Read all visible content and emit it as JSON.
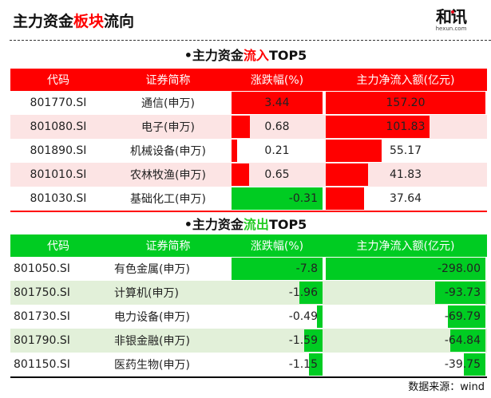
{
  "header": {
    "title_pre": "主力资金",
    "title_highlight": "板块",
    "title_post": "流向",
    "logo_mark": "和讯",
    "logo_domain": "hexun.com"
  },
  "inflow": {
    "title_pre": "•主力资金",
    "title_highlight": "流入",
    "title_post": "TOP5",
    "color": "#ff0000",
    "columns": [
      "代码",
      "证券简称",
      "涨跌幅(%)",
      "主力净流入额(亿元)"
    ],
    "rows": [
      {
        "code": "801770.SI",
        "name": "通信(申万)",
        "change": "3.44",
        "flow": "157.20"
      },
      {
        "code": "801080.SI",
        "name": "电子(申万)",
        "change": "0.68",
        "flow": "101.83"
      },
      {
        "code": "801890.SI",
        "name": "机械设备(申万)",
        "change": "0.21",
        "flow": "55.17"
      },
      {
        "code": "801010.SI",
        "name": "农林牧渔(申万)",
        "change": "0.65",
        "flow": "41.83"
      },
      {
        "code": "801030.SI",
        "name": "基础化工(申万)",
        "change": "-0.31",
        "flow": "37.64"
      }
    ]
  },
  "outflow": {
    "title_pre": "•主力资金",
    "title_highlight": "流出",
    "title_post": "TOP5",
    "color": "#00cc22",
    "columns": [
      "代码",
      "证券简称",
      "涨跌幅(%)",
      "主力净流入额(亿元)"
    ],
    "rows": [
      {
        "code": "801050.SI",
        "name": "有色金属(申万)",
        "change": "-7.8",
        "flow": "-298.00"
      },
      {
        "code": "801750.SI",
        "name": "计算机(申万)",
        "change": "-1.96",
        "flow": "-93.73"
      },
      {
        "code": "801730.SI",
        "name": "电力设备(申万)",
        "change": "-0.49",
        "flow": "-69.79"
      },
      {
        "code": "801790.SI",
        "name": "非银金融(申万)",
        "change": "-1.59",
        "flow": "-64.84"
      },
      {
        "code": "801150.SI",
        "name": "医药生物(申万)",
        "change": "-1.15",
        "flow": "-39.75"
      }
    ]
  },
  "footer": {
    "source": "数据来源：wind"
  },
  "chart_data": [
    {
      "type": "table",
      "title": "主力资金流入TOP5",
      "columns": [
        "代码",
        "证券简称",
        "涨跌幅(%)",
        "主力净流入额(亿元)"
      ],
      "categories": [
        "通信(申万)",
        "电子(申万)",
        "机械设备(申万)",
        "农林牧渔(申万)",
        "基础化工(申万)"
      ],
      "series": [
        {
          "name": "涨跌幅(%)",
          "values": [
            3.44,
            0.68,
            0.21,
            0.65,
            -0.31
          ]
        },
        {
          "name": "主力净流入额(亿元)",
          "values": [
            157.2,
            101.83,
            55.17,
            41.83,
            37.64
          ]
        }
      ]
    },
    {
      "type": "table",
      "title": "主力资金流出TOP5",
      "columns": [
        "代码",
        "证券简称",
        "涨跌幅(%)",
        "主力净流入额(亿元)"
      ],
      "categories": [
        "有色金属(申万)",
        "计算机(申万)",
        "电力设备(申万)",
        "非银金融(申万)",
        "医药生物(申万)"
      ],
      "series": [
        {
          "name": "涨跌幅(%)",
          "values": [
            -7.8,
            -1.96,
            -0.49,
            -1.59,
            -1.15
          ]
        },
        {
          "name": "主力净流入额(亿元)",
          "values": [
            -298.0,
            -93.73,
            -69.79,
            -64.84,
            -39.75
          ]
        }
      ]
    }
  ]
}
